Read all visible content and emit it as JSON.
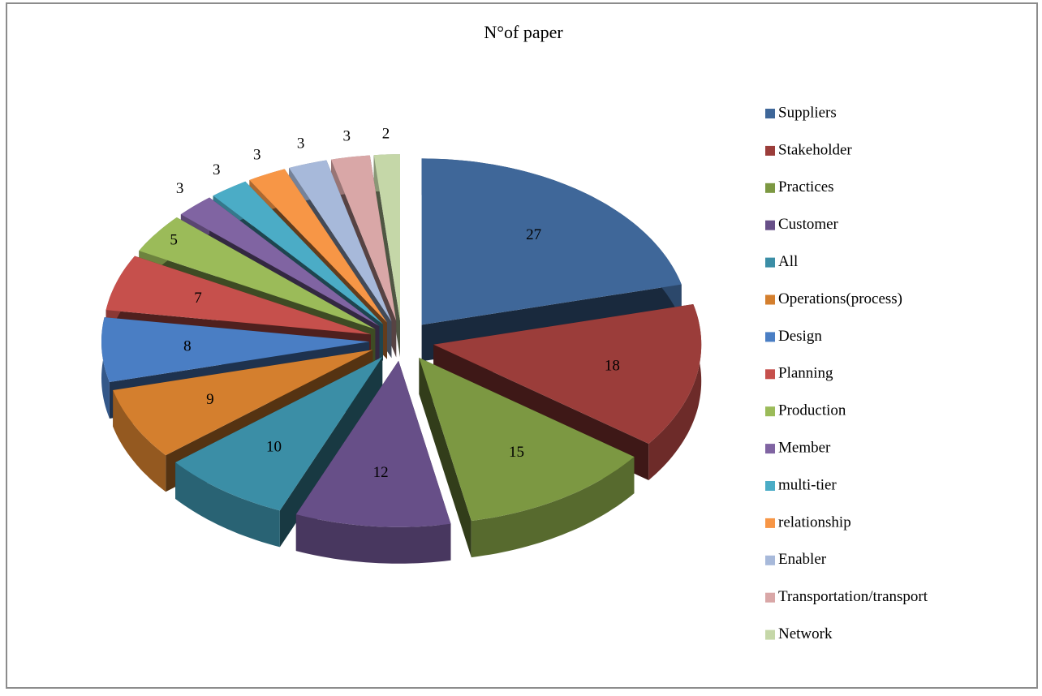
{
  "chart_data": {
    "type": "pie3d",
    "title": "N°of paper",
    "categories": [
      "Suppliers",
      "Stakeholder",
      "Practices",
      "Customer",
      "All",
      "Operations(process)",
      "Design",
      "Planning",
      "Production",
      "Member",
      "multi-tier",
      "relationship",
      "Enabler",
      "Transportation/transport",
      "Network"
    ],
    "values": [
      27,
      18,
      15,
      12,
      10,
      9,
      8,
      7,
      5,
      3,
      3,
      3,
      3,
      3,
      2
    ],
    "colors": [
      "#3f6799",
      "#9b3d3a",
      "#7c9842",
      "#674f88",
      "#3b8ea6",
      "#d47f2e",
      "#4a7ec4",
      "#c6504c",
      "#9bbb59",
      "#8064a2",
      "#4bacc6",
      "#f79646",
      "#a7b9da",
      "#d9a7a7",
      "#c5d7a8"
    ],
    "legend": "right"
  }
}
